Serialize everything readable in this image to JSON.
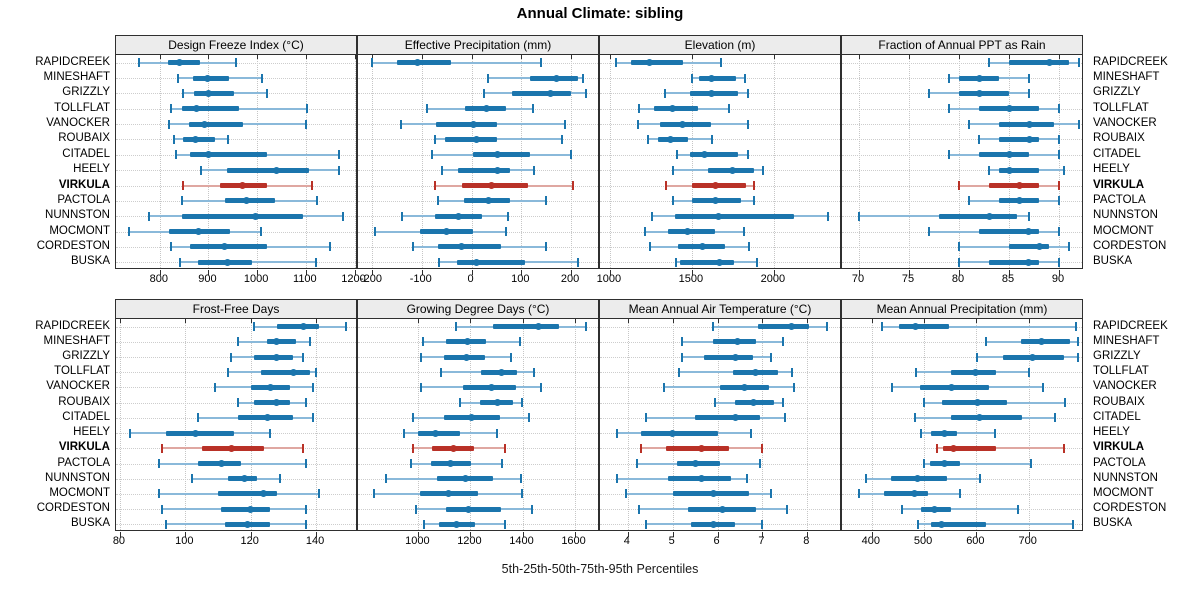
{
  "title": "Annual Climate: sibling",
  "caption": "5th-25th-50th-75th-95th Percentiles",
  "colors": {
    "series": "#1b75ad",
    "series_light": "#8ab9da",
    "highlight": "#b93127",
    "highlight_light": "#dfa7a1",
    "header_bg": "#ececec",
    "border": "#2f2f2f",
    "grid": "#c6c6c6"
  },
  "chart_data": {
    "type": "interval-dot-plot",
    "title": "Annual Climate: sibling",
    "xlabel": "5th-25th-50th-75th-95th Percentiles",
    "grid": "dotted",
    "legend_position": "none",
    "highlight_site": "VIRKULA",
    "percentiles_order": [
      "p5",
      "p25",
      "p50",
      "p75",
      "p95"
    ],
    "sites": [
      "RAPIDCREEK",
      "MINESHAFT",
      "GRIZZLY",
      "TOLLFLAT",
      "VANOCKER",
      "ROUBAIX",
      "CITADEL",
      "HEELY",
      "VIRKULA",
      "PACTOLA",
      "NUNNSTON",
      "MOCMONT",
      "CORDESTON",
      "BUSKA"
    ],
    "panels": [
      {
        "title": "Design Freeze Index (°C)",
        "xlim": [
          710,
          1203
        ],
        "ticks": [
          800,
          900,
          1000,
          1100,
          1200
        ],
        "values": [
          [
            757,
            816,
            841,
            882,
            957
          ],
          [
            837,
            869,
            898,
            943,
            1010
          ],
          [
            847,
            871,
            900,
            953,
            1020
          ],
          [
            824,
            845,
            876,
            963,
            1102
          ],
          [
            818,
            859,
            892,
            971,
            1100
          ],
          [
            829,
            847,
            873,
            914,
            941
          ],
          [
            833,
            861,
            900,
            1020,
            1169
          ],
          [
            884,
            937,
            1040,
            1107,
            1169
          ],
          [
            848,
            924,
            969,
            1020,
            1112
          ],
          [
            846,
            933,
            979,
            1037,
            1123
          ],
          [
            778,
            845,
            997,
            1095,
            1176
          ],
          [
            737,
            818,
            880,
            945,
            1008
          ],
          [
            824,
            863,
            933,
            1020,
            1149
          ],
          [
            841,
            878,
            939,
            990,
            1120
          ]
        ]
      },
      {
        "title": "Effective Precipitation (mm)",
        "xlim": [
          -228,
          254
        ],
        "ticks": [
          -200,
          -100,
          0,
          100,
          200
        ],
        "values": [
          [
            -200,
            -150,
            -108,
            -42,
            140
          ],
          [
            33,
            118,
            171,
            213,
            224
          ],
          [
            26,
            82,
            159,
            199,
            229
          ],
          [
            -90,
            -13,
            30,
            69,
            124
          ],
          [
            -141,
            -72,
            3,
            51,
            187
          ],
          [
            -74,
            -53,
            10,
            51,
            181
          ],
          [
            -79,
            2,
            53,
            118,
            199
          ],
          [
            -60,
            -28,
            52,
            78,
            125
          ],
          [
            -73,
            -20,
            40,
            114,
            204
          ],
          [
            -67,
            -15,
            35,
            78,
            150
          ],
          [
            -140,
            -73,
            -26,
            22,
            73
          ],
          [
            -193,
            -104,
            -51,
            2,
            69
          ],
          [
            -118,
            -67,
            -20,
            59,
            150
          ],
          [
            -66,
            -30,
            9,
            108,
            213
          ]
        ]
      },
      {
        "title": "Elevation (m)",
        "xlim": [
          940,
          2403
        ],
        "ticks": [
          1000,
          1500,
          2000
        ],
        "values": [
          [
            1040,
            1127,
            1243,
            1448,
            1675
          ],
          [
            1498,
            1545,
            1618,
            1772,
            1822
          ],
          [
            1337,
            1488,
            1618,
            1779,
            1843
          ],
          [
            1177,
            1267,
            1381,
            1538,
            1729
          ],
          [
            1173,
            1307,
            1444,
            1618,
            1843
          ],
          [
            1233,
            1293,
            1371,
            1478,
            1622
          ],
          [
            1408,
            1488,
            1578,
            1779,
            1845
          ],
          [
            1388,
            1598,
            1749,
            1880,
            1936
          ],
          [
            1343,
            1498,
            1643,
            1829,
            1880
          ],
          [
            1388,
            1498,
            1645,
            1799,
            1876
          ],
          [
            1257,
            1398,
            1663,
            2120,
            2331
          ],
          [
            1213,
            1353,
            1472,
            1638,
            1819
          ],
          [
            1247,
            1418,
            1562,
            1699,
            1849
          ],
          [
            1404,
            1428,
            1669,
            1759,
            1900
          ]
        ]
      },
      {
        "title": "Fraction of Annual PPT as Rain",
        "xlim": [
          68.3,
          92.3
        ],
        "ticks": [
          70,
          75,
          80,
          85,
          90
        ],
        "values": [
          [
            83,
            85,
            89,
            91,
            92
          ],
          [
            79,
            80,
            82,
            84,
            87
          ],
          [
            77,
            80,
            82,
            85,
            87
          ],
          [
            79,
            82,
            85,
            88,
            90
          ],
          [
            81,
            84,
            87,
            89.5,
            92
          ],
          [
            82,
            84,
            87,
            88,
            90
          ],
          [
            79,
            82,
            85,
            87,
            90
          ],
          [
            83,
            84,
            85,
            88,
            90.5
          ],
          [
            80,
            83,
            86,
            88,
            90
          ],
          [
            81,
            84,
            86,
            88,
            90
          ],
          [
            70,
            78,
            83,
            85.8,
            87
          ],
          [
            77,
            82,
            86.9,
            88,
            90
          ],
          [
            80,
            85,
            88,
            89,
            91
          ],
          [
            80,
            83,
            86.9,
            88,
            90
          ]
        ]
      },
      {
        "title": "Frost-Free Days",
        "xlim": [
          78.8,
          152.2
        ],
        "ticks": [
          80,
          100,
          120,
          140
        ],
        "values": [
          [
            121,
            128,
            136,
            141,
            149
          ],
          [
            116,
            125,
            128,
            134,
            138
          ],
          [
            114,
            121,
            128,
            133,
            136
          ],
          [
            113,
            123,
            133,
            138,
            140
          ],
          [
            109,
            120,
            126,
            132,
            139
          ],
          [
            116,
            121,
            128,
            132,
            137
          ],
          [
            104,
            116,
            125,
            133,
            139
          ],
          [
            83,
            94,
            103,
            115,
            126
          ],
          [
            93,
            105,
            114,
            124,
            136
          ],
          [
            92,
            104,
            111,
            117,
            137
          ],
          [
            102,
            113,
            118,
            122,
            129
          ],
          [
            92,
            110,
            124,
            128,
            141
          ],
          [
            93,
            111,
            120,
            126,
            137
          ],
          [
            94,
            112,
            119,
            126,
            137
          ]
        ]
      },
      {
        "title": "Growing Degree Days (°C)",
        "xlim": [
          768,
          1690
        ],
        "ticks": [
          1000,
          1200,
          1400,
          1600
        ],
        "values": [
          [
            1145,
            1285,
            1460,
            1540,
            1645
          ],
          [
            1016,
            1105,
            1187,
            1260,
            1390
          ],
          [
            1010,
            1100,
            1185,
            1255,
            1355
          ],
          [
            1085,
            1240,
            1320,
            1380,
            1445
          ],
          [
            1010,
            1170,
            1280,
            1375,
            1470
          ],
          [
            1160,
            1237,
            1302,
            1362,
            1397
          ],
          [
            980,
            1100,
            1203,
            1313,
            1425
          ],
          [
            945,
            1000,
            1067,
            1161,
            1302
          ],
          [
            978,
            1053,
            1133,
            1212,
            1332
          ],
          [
            970,
            1050,
            1123,
            1203,
            1320
          ],
          [
            875,
            1070,
            1180,
            1285,
            1395
          ],
          [
            831,
            1006,
            1117,
            1228,
            1397
          ],
          [
            990,
            1105,
            1194,
            1317,
            1435
          ],
          [
            1022,
            1080,
            1148,
            1216,
            1332
          ]
        ]
      },
      {
        "title": "Mean Annual Air Temperature (°C)",
        "xlim": [
          3.38,
          8.73
        ],
        "ticks": [
          4,
          5,
          6,
          7,
          8
        ],
        "values": [
          [
            5.9,
            6.9,
            7.65,
            8.05,
            8.45
          ],
          [
            5.2,
            5.9,
            6.45,
            6.85,
            7.45
          ],
          [
            5.2,
            5.7,
            6.4,
            6.8,
            7.2
          ],
          [
            5.15,
            6.35,
            6.85,
            7.35,
            7.65
          ],
          [
            4.8,
            6.05,
            6.6,
            7.15,
            7.7
          ],
          [
            5.95,
            6.4,
            6.8,
            7.25,
            7.45
          ],
          [
            4.4,
            5.5,
            6.4,
            6.95,
            7.5
          ],
          [
            3.75,
            4.3,
            5.0,
            6.0,
            6.75
          ],
          [
            4.3,
            4.85,
            5.65,
            6.25,
            7.0
          ],
          [
            4.2,
            5.1,
            5.5,
            6.05,
            6.95
          ],
          [
            3.75,
            4.9,
            5.65,
            6.3,
            6.65
          ],
          [
            3.95,
            5.0,
            5.9,
            6.7,
            7.2
          ],
          [
            4.25,
            5.35,
            6.1,
            6.85,
            7.55
          ],
          [
            4.4,
            5.4,
            5.9,
            6.4,
            7.0
          ]
        ]
      },
      {
        "title": "Mean Annual Precipitation (mm)",
        "xlim": [
          343,
          802
        ],
        "ticks": [
          400,
          500,
          600,
          700
        ],
        "values": [
          [
            419,
            452,
            483,
            548,
            790
          ],
          [
            618,
            685,
            725,
            780,
            794
          ],
          [
            602,
            651,
            708,
            767,
            794
          ],
          [
            484,
            552,
            598,
            637,
            700
          ],
          [
            438,
            492,
            552,
            625,
            727
          ],
          [
            499,
            535,
            602,
            659,
            770
          ],
          [
            482,
            551,
            606,
            688,
            750
          ],
          [
            494,
            514,
            539,
            563,
            635
          ],
          [
            525,
            537,
            557,
            637,
            767
          ],
          [
            500,
            512,
            539,
            568,
            705
          ],
          [
            388,
            436,
            488,
            543,
            606
          ],
          [
            375,
            424,
            481,
            508,
            569
          ],
          [
            458,
            494,
            519,
            552,
            680
          ],
          [
            489,
            514,
            533,
            618,
            785
          ]
        ]
      }
    ]
  }
}
